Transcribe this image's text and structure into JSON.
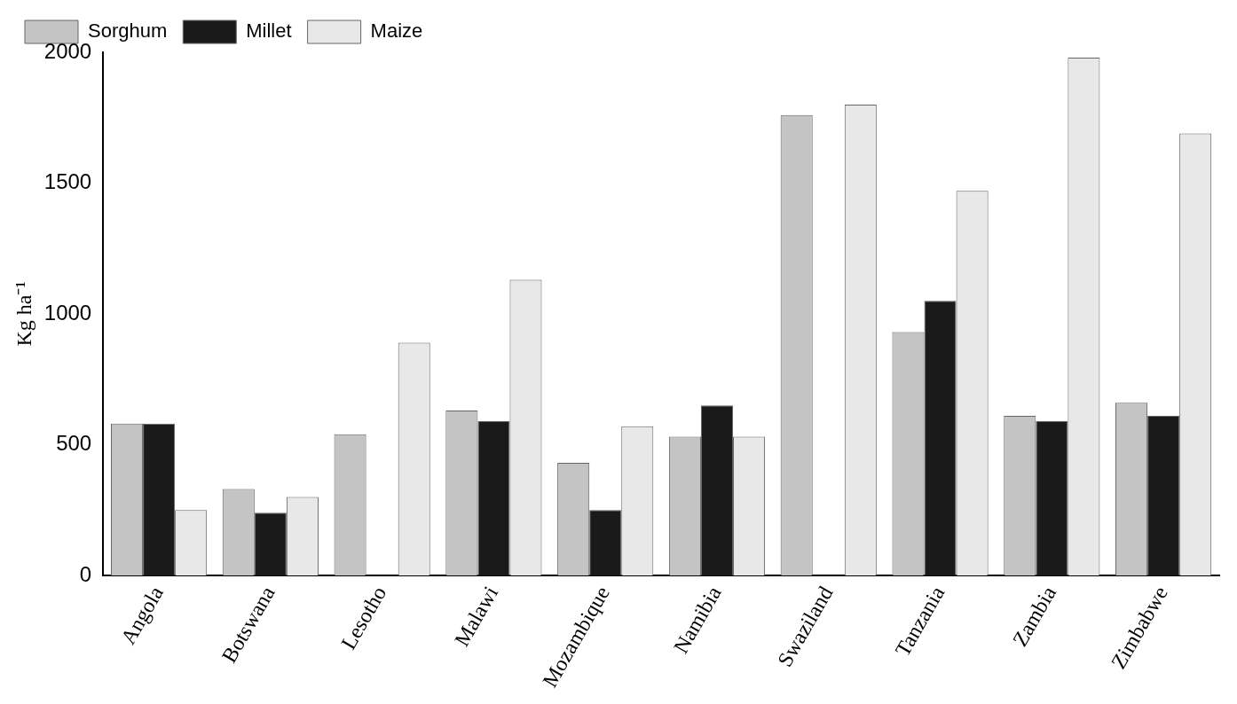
{
  "chart_data": {
    "type": "bar",
    "ylabel": "Kg ha⁻¹",
    "categories": [
      "Angola",
      "Botswana",
      "Lesotho",
      "Malawi",
      "Mozambique",
      "Namibia",
      "Swaziland",
      "Tanzania",
      "Zambia",
      "Zimbabwe"
    ],
    "series": [
      {
        "name": "Sorghum",
        "color": "#c4c4c4",
        "values": [
          580,
          330,
          540,
          630,
          430,
          530,
          1760,
          930,
          610,
          660
        ]
      },
      {
        "name": "Millet",
        "color": "#1a1a1a",
        "values": [
          580,
          240,
          null,
          590,
          250,
          650,
          null,
          1050,
          590,
          610
        ]
      },
      {
        "name": "Maize",
        "color": "#e8e8e8",
        "values": [
          250,
          300,
          890,
          1130,
          570,
          530,
          1800,
          1470,
          1980,
          1690
        ]
      }
    ],
    "ylim": [
      0,
      2000
    ],
    "yticks": [
      0,
      500,
      1000,
      1500,
      2000
    ],
    "grid": false,
    "legend": "top left"
  }
}
